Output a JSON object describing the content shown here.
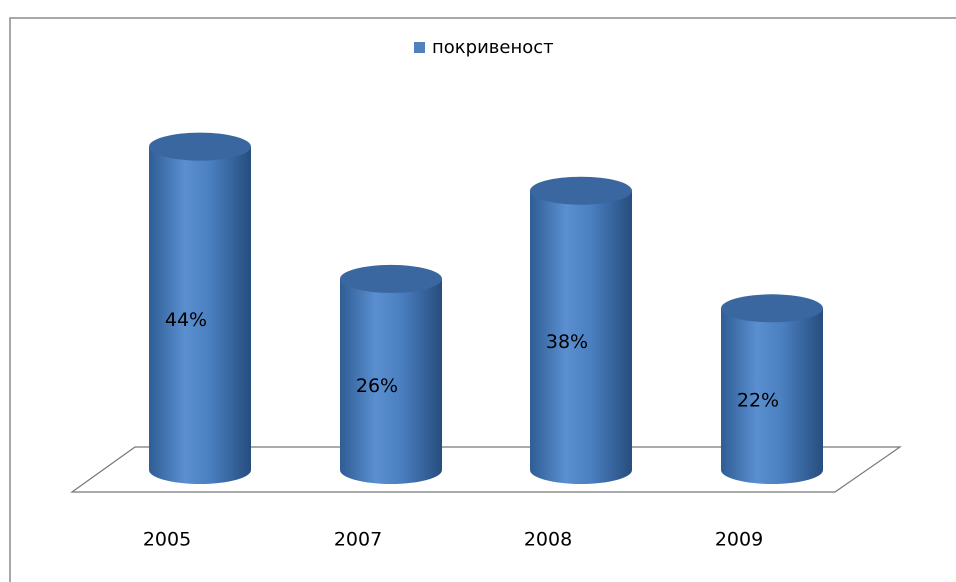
{
  "chart_data": {
    "type": "bar3d-cylinder",
    "legend": "покривеност",
    "color": "#4f81bd",
    "categories": [
      "2005",
      "2007",
      "2008",
      "2009"
    ],
    "values": [
      44,
      26,
      38,
      22
    ],
    "value_labels": [
      "44%",
      "26%",
      "38%",
      "22%"
    ]
  }
}
